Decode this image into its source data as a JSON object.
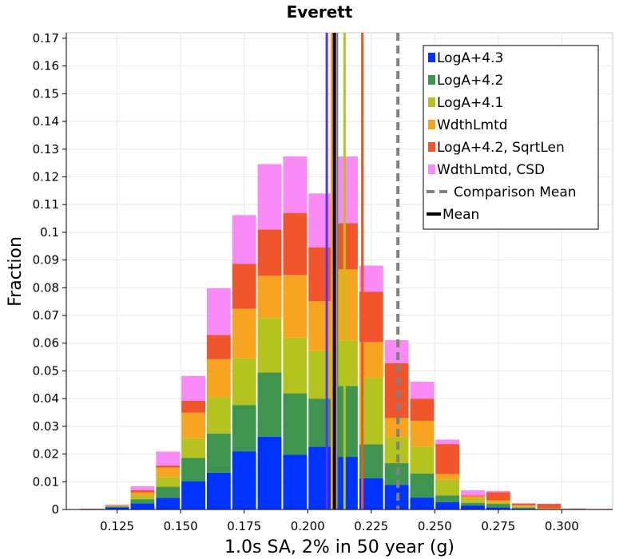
{
  "chart_data": {
    "type": "bar",
    "stacked": true,
    "title": "Everett",
    "xlabel": "1.0s SA, 2% in 50 year (g)",
    "ylabel": "Fraction",
    "xlim": [
      0.105,
      0.32
    ],
    "ylim": [
      0,
      0.172
    ],
    "bin_width": 0.01,
    "x": [
      0.115,
      0.125,
      0.135,
      0.145,
      0.155,
      0.165,
      0.175,
      0.185,
      0.195,
      0.205,
      0.215,
      0.225,
      0.235,
      0.245,
      0.255,
      0.265,
      0.275,
      0.285,
      0.295,
      0.305,
      0.315
    ],
    "xticks": [
      "0.125",
      "0.150",
      "0.175",
      "0.200",
      "0.225",
      "0.250",
      "0.275",
      "0.300"
    ],
    "xtick_values": [
      0.125,
      0.15,
      0.175,
      0.2,
      0.225,
      0.25,
      0.275,
      0.3
    ],
    "yticks": [
      "0",
      "0.01",
      "0.02",
      "0.03",
      "0.04",
      "0.05",
      "0.06",
      "0.07",
      "0.08",
      "0.09",
      "0.1",
      "0.11",
      "0.12",
      "0.13",
      "0.14",
      "0.15",
      "0.16",
      "0.17"
    ],
    "ytick_values": [
      0,
      0.01,
      0.02,
      0.03,
      0.04,
      0.05,
      0.06,
      0.07,
      0.08,
      0.09,
      0.1,
      0.11,
      0.12,
      0.13,
      0.14,
      0.15,
      0.16,
      0.17
    ],
    "grid": true,
    "legend_position": "top-right",
    "series": [
      {
        "name": "LogA+4.3",
        "color": "#0033ff",
        "values": [
          0.0002,
          0.0008,
          0.0022,
          0.0042,
          0.0102,
          0.0133,
          0.021,
          0.0263,
          0.0198,
          0.0226,
          0.019,
          0.0113,
          0.0089,
          0.0043,
          0.0026,
          0.0015,
          0.0008,
          0.0003,
          0.0001,
          0.0001,
          0.0
        ]
      },
      {
        "name": "LogA+4.2",
        "color": "#3f9450",
        "values": [
          0.0,
          0.0003,
          0.0015,
          0.004,
          0.0084,
          0.0141,
          0.0167,
          0.0231,
          0.0221,
          0.0174,
          0.0256,
          0.0122,
          0.0078,
          0.0087,
          0.0025,
          0.0009,
          0.0012,
          0.0004,
          0.0001,
          0.0,
          0.0
        ]
      },
      {
        "name": "LogA+4.1",
        "color": "#b5c31f",
        "values": [
          0.0,
          0.0002,
          0.0012,
          0.0034,
          0.0071,
          0.0131,
          0.0168,
          0.0197,
          0.0201,
          0.0174,
          0.0164,
          0.024,
          0.0094,
          0.0097,
          0.0056,
          0.0015,
          0.0006,
          0.0004,
          0.0001,
          0.0001,
          0.0
        ]
      },
      {
        "name": "WdthLmtd",
        "color": "#f7a521",
        "values": [
          0.0,
          0.0002,
          0.0012,
          0.0035,
          0.0092,
          0.0137,
          0.0179,
          0.0152,
          0.0226,
          0.0178,
          0.0256,
          0.0129,
          0.0069,
          0.0093,
          0.0021,
          0.0008,
          0.0007,
          0.0004,
          0.0001,
          0.0,
          0.0
        ]
      },
      {
        "name": "LogA+4.2, SqrtLen",
        "color": "#f0552b",
        "values": [
          0.0001,
          0.0001,
          0.0009,
          0.0008,
          0.0043,
          0.0088,
          0.0162,
          0.0167,
          0.0224,
          0.0194,
          0.0167,
          0.0182,
          0.0198,
          0.008,
          0.0108,
          0.0004,
          0.0029,
          0.0006,
          0.0016,
          0.0001,
          0.0002
        ]
      },
      {
        "name": "WdthLmtd, CSD",
        "color": "#fa8af5",
        "values": [
          0.0,
          0.0002,
          0.0014,
          0.005,
          0.009,
          0.0168,
          0.0176,
          0.0236,
          0.0204,
          0.0194,
          0.0241,
          0.0094,
          0.0083,
          0.0061,
          0.0016,
          0.0018,
          0.0005,
          0.0002,
          0.0001,
          0.0001,
          0.0
        ]
      }
    ],
    "vlines": [
      {
        "label": "LogA+4.3 mean",
        "x": 0.2075,
        "color": "#5533ff",
        "style": "solid"
      },
      {
        "label": "LogA+4.2 mean",
        "x": 0.2115,
        "color": "#3f9450",
        "style": "solid"
      },
      {
        "label": "LogA+4.1 mean",
        "x": 0.2145,
        "color": "#b5c31f",
        "style": "solid"
      },
      {
        "label": "WdthLmtd mean",
        "x": 0.2095,
        "color": "#f7a521",
        "style": "solid"
      },
      {
        "label": "LogA+4.2, SqrtLen mean",
        "x": 0.2215,
        "color": "#f0552b",
        "style": "solid"
      },
      {
        "label": "WdthLmtd, CSD mean",
        "x": 0.211,
        "color": "#fa8af5",
        "style": "solid"
      },
      {
        "label": "Comparison Mean",
        "x": 0.2355,
        "color": "#808080",
        "style": "dashed"
      },
      {
        "label": "Mean",
        "x": 0.2105,
        "color": "#000000",
        "style": "solid"
      }
    ],
    "legend": [
      {
        "label": "LogA+4.3",
        "color": "#0033ff",
        "kind": "box"
      },
      {
        "label": "LogA+4.2",
        "color": "#3f9450",
        "kind": "box"
      },
      {
        "label": "LogA+4.1",
        "color": "#b5c31f",
        "kind": "box"
      },
      {
        "label": "WdthLmtd",
        "color": "#f7a521",
        "kind": "box"
      },
      {
        "label": "LogA+4.2, SqrtLen",
        "color": "#f0552b",
        "kind": "box"
      },
      {
        "label": "WdthLmtd, CSD",
        "color": "#fa8af5",
        "kind": "box"
      },
      {
        "label": "Comparison Mean",
        "color": "#808080",
        "kind": "dashed"
      },
      {
        "label": "Mean",
        "color": "#000000",
        "kind": "line"
      }
    ]
  }
}
